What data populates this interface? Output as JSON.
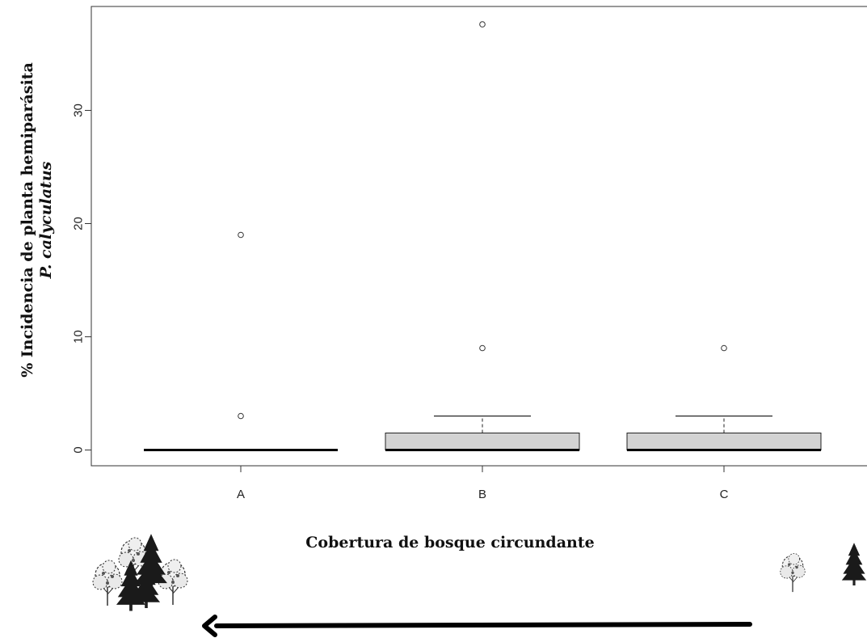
{
  "chart_data": {
    "type": "boxplot",
    "title": "",
    "xlabel": "Cobertura de bosque circundante",
    "ylabel_line1": "% Incidencia de planta hemiparásita",
    "ylabel_line2": "P. calyculatus",
    "ylim": [
      -1.5,
      39
    ],
    "yticks": [
      0,
      10,
      20,
      30
    ],
    "categories": [
      "A",
      "B",
      "C"
    ],
    "boxes": [
      {
        "name": "A",
        "min": 0,
        "q1": 0,
        "median": 0,
        "q3": 0,
        "max": 0,
        "outliers": [
          3,
          19
        ]
      },
      {
        "name": "B",
        "min": 0,
        "q1": 0,
        "median": 0,
        "q3": 1.5,
        "max": 3,
        "outliers": [
          9,
          37.6
        ]
      },
      {
        "name": "C",
        "min": 0,
        "q1": 0,
        "median": 0,
        "q3": 1.5,
        "max": 3,
        "outliers": [
          9
        ]
      }
    ],
    "box_fill": "#d3d3d3",
    "grid": false
  },
  "illustrations": {
    "left_trees": "dense-forest-trees-icon",
    "right_trees": "sparse-trees-icon",
    "arrow": "arrow-left-icon"
  }
}
